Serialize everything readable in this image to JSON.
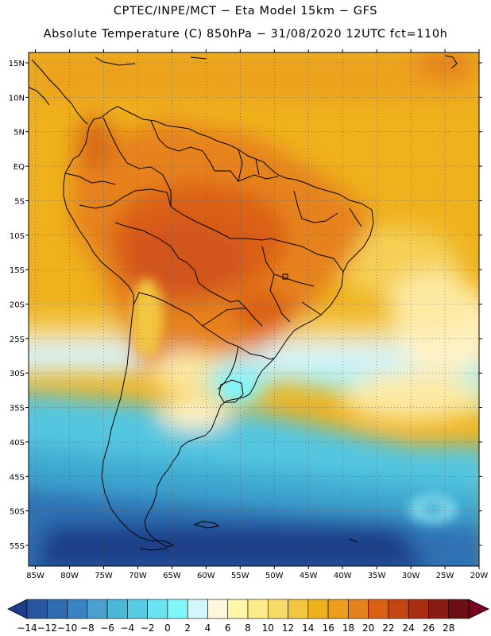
{
  "header": {
    "title_line1": "CPTEC/INPE/MCT  −   Eta Model 15km  −  GFS",
    "title_line2": "Absolute Temperature (C) 850hPa − 31/08/2020 12UTC fct=110h"
  },
  "map": {
    "lat_labels": [
      "15N",
      "10N",
      "5N",
      "EQ",
      "5S",
      "10S",
      "15S",
      "20S",
      "25S",
      "30S",
      "35S",
      "40S",
      "45S",
      "50S",
      "55S"
    ],
    "lat_values": [
      15,
      10,
      5,
      0,
      -5,
      -10,
      -15,
      -20,
      -25,
      -30,
      -35,
      -40,
      -45,
      -50,
      -55
    ],
    "lon_labels": [
      "85W",
      "80W",
      "75W",
      "70W",
      "65W",
      "60W",
      "55W",
      "50W",
      "45W",
      "40W",
      "35W",
      "30W",
      "25W",
      "20W"
    ],
    "lon_values": [
      -85,
      -80,
      -75,
      -70,
      -65,
      -60,
      -55,
      -50,
      -45,
      -40,
      -35,
      -30,
      -25,
      -20
    ],
    "lat_range": [
      -58,
      16.5
    ],
    "lon_range": [
      -86,
      -20
    ]
  },
  "colorbar": {
    "tick_labels": [
      "−14",
      "−12",
      "−10",
      "−8",
      "−6",
      "−4",
      "−2",
      "0",
      "2",
      "4",
      "6",
      "8",
      "10",
      "12",
      "14",
      "16",
      "18",
      "20",
      "22",
      "24",
      "26",
      "28"
    ],
    "colors": [
      "#1f3c88",
      "#2857a0",
      "#2f6cb0",
      "#3a83c2",
      "#4aa0cf",
      "#4cb8d8",
      "#58cbe3",
      "#6ae4ef",
      "#7ff7f9",
      "#d1f6fb",
      "#fff8dd",
      "#fff6a8",
      "#fdec8a",
      "#f8da66",
      "#f2c63f",
      "#eeb01d",
      "#ec9e1a",
      "#e6821b",
      "#db5f12",
      "#c44512",
      "#a72f10",
      "#8a1d12",
      "#6b0f14",
      "#7a001f"
    ],
    "min_value": -14,
    "max_value": 28
  }
}
